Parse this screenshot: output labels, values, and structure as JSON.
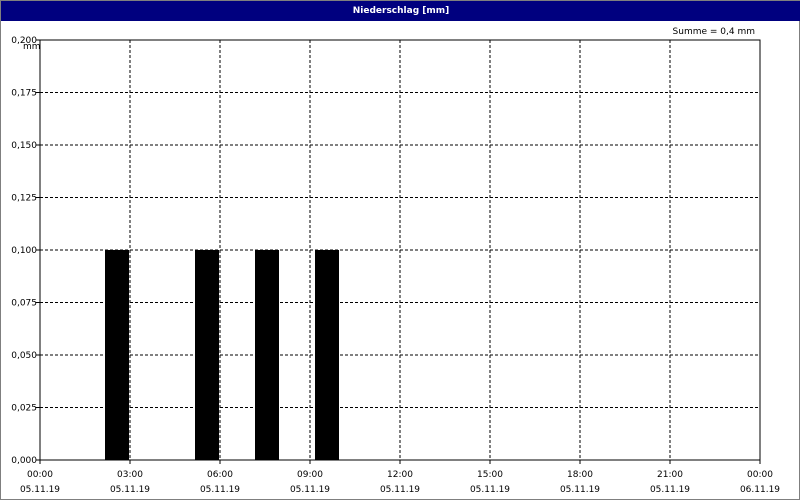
{
  "window": {
    "title": "Niederschlag [mm]"
  },
  "summary": {
    "text": "Summe = 0,4 mm"
  },
  "colors": {
    "titlebar": "#00007f",
    "bar": "#000000",
    "grid": "#000000"
  },
  "chart_data": {
    "type": "bar",
    "title": "Niederschlag [mm]",
    "ylabel": "mm",
    "xlabel": "",
    "ylim": [
      0,
      0.2
    ],
    "yticks": [
      0,
      0.025,
      0.05,
      0.075,
      0.1,
      0.125,
      0.15,
      0.175,
      0.2
    ],
    "ytick_labels": [
      "0,000",
      "0,025",
      "0,050",
      "0,075",
      "0,100",
      "0,125",
      "0,150",
      "0,175",
      "0,200"
    ],
    "xlim_hours": [
      0,
      24
    ],
    "xticks": [
      {
        "time": "00:00",
        "date": "05.11.19"
      },
      {
        "time": "03:00",
        "date": "05.11.19"
      },
      {
        "time": "06:00",
        "date": "05.11.19"
      },
      {
        "time": "09:00",
        "date": "05.11.19"
      },
      {
        "time": "12:00",
        "date": "05.11.19"
      },
      {
        "time": "15:00",
        "date": "05.11.19"
      },
      {
        "time": "18:00",
        "date": "05.11.19"
      },
      {
        "time": "21:00",
        "date": "05.11.19"
      },
      {
        "time": "00:00",
        "date": "06.11.19"
      }
    ],
    "bars": [
      {
        "start": "02:10",
        "end": "02:58",
        "value": 0.1
      },
      {
        "start": "05:10",
        "end": "05:58",
        "value": 0.1
      },
      {
        "start": "07:10",
        "end": "07:58",
        "value": 0.1
      },
      {
        "start": "09:10",
        "end": "09:58",
        "value": 0.1
      }
    ],
    "total": "0,4 mm",
    "grid": true
  }
}
